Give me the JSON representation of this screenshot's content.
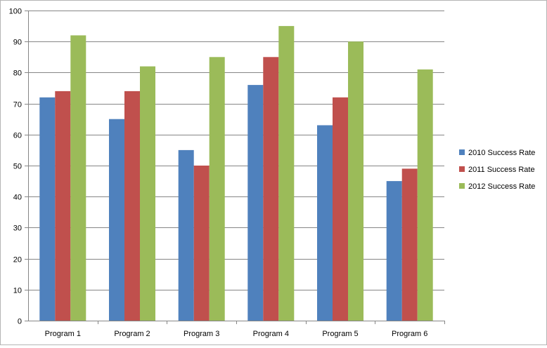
{
  "chart_data": {
    "type": "bar",
    "title": "",
    "xlabel": "",
    "ylabel": "",
    "categories": [
      "Program 1",
      "Program 2",
      "Program 3",
      "Program 4",
      "Program 5",
      "Program 6"
    ],
    "series": [
      {
        "name": "2010 Success Rate",
        "color": "#4F81BD",
        "values": [
          72,
          65,
          55,
          76,
          63,
          45
        ]
      },
      {
        "name": "2011 Success Rate",
        "color": "#C0504D",
        "values": [
          74,
          74,
          50,
          85,
          72,
          49
        ]
      },
      {
        "name": "2012 Success Rate",
        "color": "#9BBB59",
        "values": [
          92,
          82,
          85,
          95,
          90,
          81
        ]
      }
    ],
    "ylim": [
      0,
      100
    ],
    "yticks": [
      0,
      10,
      20,
      30,
      40,
      50,
      60,
      70,
      80,
      90,
      100
    ],
    "grid": true,
    "legend_position": "right"
  }
}
